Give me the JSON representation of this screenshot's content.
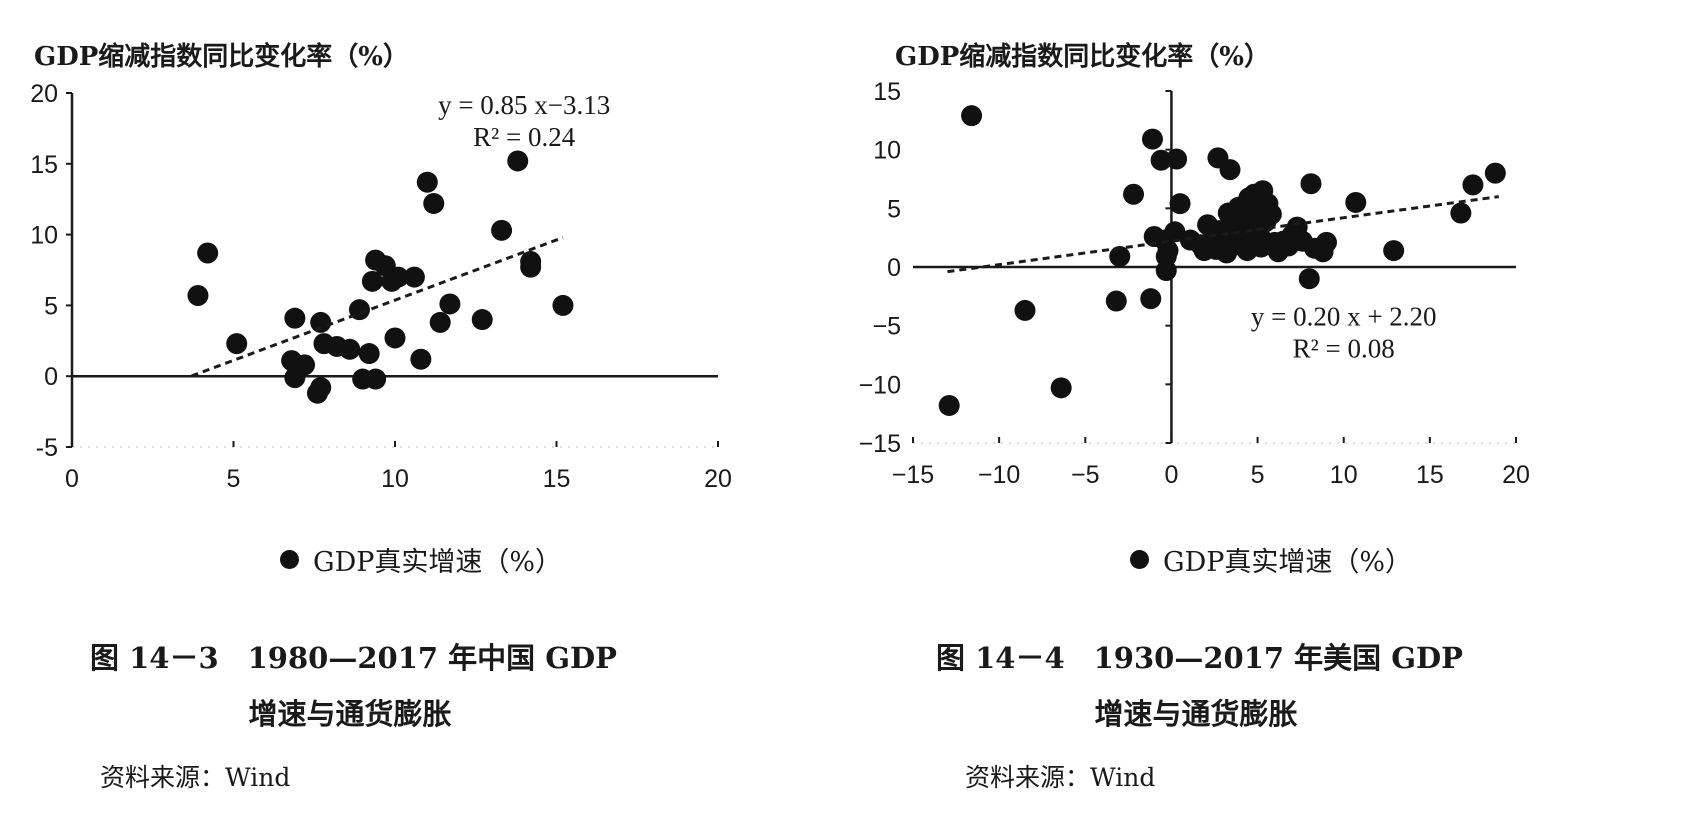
{
  "chart_data": [
    {
      "type": "scatter",
      "ylabel": "GDP缩减指数同比变化率（%）",
      "legend": "GDP真实增速（%）",
      "xlim": [
        0,
        20
      ],
      "ylim": [
        -5,
        20
      ],
      "xticks": [
        "0",
        "5",
        "10",
        "15",
        "20"
      ],
      "yticks": [
        "20",
        "15",
        "10",
        "5",
        "0",
        "-5"
      ],
      "xtick_values": [
        0,
        5,
        10,
        15,
        20
      ],
      "ytick_values": [
        20,
        15,
        10,
        5,
        0,
        -5
      ],
      "grid": false,
      "trendline": {
        "slope": 0.85,
        "intercept": -3.13,
        "x_range": [
          3.7,
          15.2
        ]
      },
      "equation": [
        "y = 0.85 x−3.13",
        "R² = 0.24"
      ],
      "equation_anchor": [
        14.0,
        18.5
      ],
      "points": [
        [
          3.9,
          5.7
        ],
        [
          4.2,
          8.7
        ],
        [
          5.1,
          2.3
        ],
        [
          6.8,
          1.1
        ],
        [
          6.9,
          4.1
        ],
        [
          6.9,
          -0.1
        ],
        [
          7.2,
          0.8
        ],
        [
          7.6,
          -1.2
        ],
        [
          7.7,
          -0.8
        ],
        [
          7.7,
          3.8
        ],
        [
          7.8,
          2.3
        ],
        [
          8.2,
          2.1
        ],
        [
          8.6,
          1.9
        ],
        [
          8.9,
          4.7
        ],
        [
          9.0,
          -0.2
        ],
        [
          9.2,
          1.6
        ],
        [
          9.3,
          6.7
        ],
        [
          9.4,
          -0.2
        ],
        [
          9.4,
          8.2
        ],
        [
          9.7,
          7.8
        ],
        [
          9.9,
          6.7
        ],
        [
          10.0,
          2.7
        ],
        [
          10.1,
          7.0
        ],
        [
          10.6,
          7.0
        ],
        [
          10.8,
          1.2
        ],
        [
          11.0,
          13.7
        ],
        [
          11.2,
          12.2
        ],
        [
          11.4,
          3.8
        ],
        [
          11.7,
          5.1
        ],
        [
          12.7,
          4.0
        ],
        [
          13.3,
          10.3
        ],
        [
          13.8,
          15.2
        ],
        [
          14.2,
          8.1
        ],
        [
          14.2,
          7.7
        ],
        [
          15.2,
          5.0
        ]
      ]
    },
    {
      "type": "scatter",
      "ylabel": "GDP缩减指数同比变化率（%）",
      "legend": "GDP真实增速（%）",
      "xlim": [
        -15,
        20
      ],
      "ylim": [
        -15,
        15
      ],
      "xticks": [
        "−15",
        "−10",
        "−5",
        "0",
        "5",
        "10",
        "15",
        "20"
      ],
      "yticks": [
        "15",
        "10",
        "5",
        "0",
        "−5",
        "−10",
        "−15"
      ],
      "xtick_values": [
        -15,
        -10,
        -5,
        0,
        5,
        10,
        15,
        20
      ],
      "ytick_values": [
        15,
        10,
        5,
        0,
        -5,
        -10,
        -15
      ],
      "grid": false,
      "trendline": {
        "slope": 0.2,
        "intercept": 2.2,
        "x_range": [
          -13,
          19
        ]
      },
      "equation": [
        "y = 0.20 x + 2.20",
        "R² = 0.08"
      ],
      "equation_anchor": [
        10.0,
        -5.0
      ],
      "points": [
        [
          -12.9,
          -11.8
        ],
        [
          -11.6,
          12.9
        ],
        [
          -8.5,
          -3.7
        ],
        [
          -6.4,
          -10.3
        ],
        [
          -3.2,
          -2.9
        ],
        [
          -3.0,
          0.9
        ],
        [
          -2.2,
          6.2
        ],
        [
          -1.2,
          -2.7
        ],
        [
          -1.1,
          10.9
        ],
        [
          -1.0,
          2.6
        ],
        [
          -0.6,
          9.1
        ],
        [
          -0.4,
          2.3
        ],
        [
          -0.3,
          0.9
        ],
        [
          -0.3,
          -0.3
        ],
        [
          -0.2,
          1.4
        ],
        [
          0.2,
          3.0
        ],
        [
          0.3,
          9.2
        ],
        [
          0.5,
          5.4
        ],
        [
          1.1,
          2.3
        ],
        [
          1.7,
          1.9
        ],
        [
          1.9,
          1.4
        ],
        [
          2.1,
          3.6
        ],
        [
          2.4,
          2.5
        ],
        [
          2.6,
          1.5
        ],
        [
          2.7,
          9.3
        ],
        [
          2.8,
          3.1
        ],
        [
          3.0,
          2.0
        ],
        [
          3.2,
          1.2
        ],
        [
          3.3,
          4.6
        ],
        [
          3.4,
          8.3
        ],
        [
          3.5,
          2.8
        ],
        [
          3.7,
          2.2
        ],
        [
          3.8,
          4.0
        ],
        [
          3.9,
          5.1
        ],
        [
          4.0,
          3.3
        ],
        [
          4.1,
          1.8
        ],
        [
          4.2,
          2.6
        ],
        [
          4.3,
          4.2
        ],
        [
          4.4,
          1.4
        ],
        [
          4.5,
          5.9
        ],
        [
          4.6,
          3.4
        ],
        [
          4.7,
          2.3
        ],
        [
          4.8,
          6.2
        ],
        [
          4.9,
          4.6
        ],
        [
          5.0,
          5.0
        ],
        [
          5.1,
          2.9
        ],
        [
          5.2,
          1.7
        ],
        [
          5.3,
          6.5
        ],
        [
          5.5,
          3.9
        ],
        [
          5.6,
          5.4
        ],
        [
          5.8,
          4.5
        ],
        [
          6.0,
          2.1
        ],
        [
          6.2,
          1.3
        ],
        [
          6.5,
          2.2
        ],
        [
          6.8,
          1.8
        ],
        [
          7.0,
          2.7
        ],
        [
          7.3,
          3.4
        ],
        [
          7.6,
          2.2
        ],
        [
          8.0,
          -1.0
        ],
        [
          8.1,
          7.1
        ],
        [
          8.3,
          1.6
        ],
        [
          8.8,
          1.3
        ],
        [
          9.0,
          2.1
        ],
        [
          10.7,
          5.5
        ],
        [
          12.9,
          1.4
        ],
        [
          16.8,
          4.6
        ],
        [
          17.5,
          7.0
        ],
        [
          18.8,
          8.0
        ]
      ]
    }
  ],
  "captions": [
    {
      "line1": "图 14－3　1980—2017 年中国 GDP",
      "line2": "增速与通货膨胀"
    },
    {
      "line1": "图 14－4　1930—2017 年美国 GDP",
      "line2": "增速与通货膨胀"
    }
  ],
  "source": "资料来源：Wind",
  "colors": {
    "marker": "#111111",
    "axis": "#1a1a1a",
    "trendline": "#1a1a1a"
  }
}
